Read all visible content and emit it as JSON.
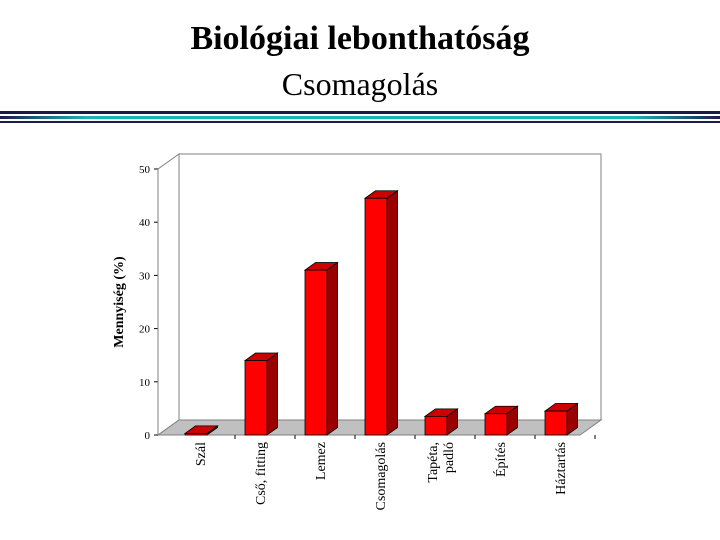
{
  "slide": {
    "title": "Biológiai lebonthatóság",
    "subtitle": "Csomagolás"
  },
  "colors": {
    "bar_front": "#ff0000",
    "bar_side": "#990000",
    "bar_top": "#cc0000",
    "rule_dark": "#1a1a4d",
    "rule_accent": "#19b5b5"
  },
  "chart_data": {
    "type": "bar",
    "style": "3d",
    "ylabel": "Mennyiség (%)",
    "xlabel": "",
    "ylim": [
      0,
      50
    ],
    "yticks": [
      0,
      10,
      20,
      30,
      40,
      50
    ],
    "grid": false,
    "legend": "none",
    "categories": [
      "Szál",
      "Cső, fitting",
      "Lemez",
      "Csomagolás",
      "Tapéta, padló",
      "Építés",
      "Háztartás"
    ],
    "category_lines": [
      [
        "Szál"
      ],
      [
        "Cső, fitting"
      ],
      [
        "Lemez"
      ],
      [
        "Csomagolás"
      ],
      [
        "Tapéta,",
        "padló"
      ],
      [
        "Építés"
      ],
      [
        "Háztartás"
      ]
    ],
    "values": [
      0.3,
      14,
      31,
      44.5,
      3.5,
      4,
      4.5
    ]
  }
}
